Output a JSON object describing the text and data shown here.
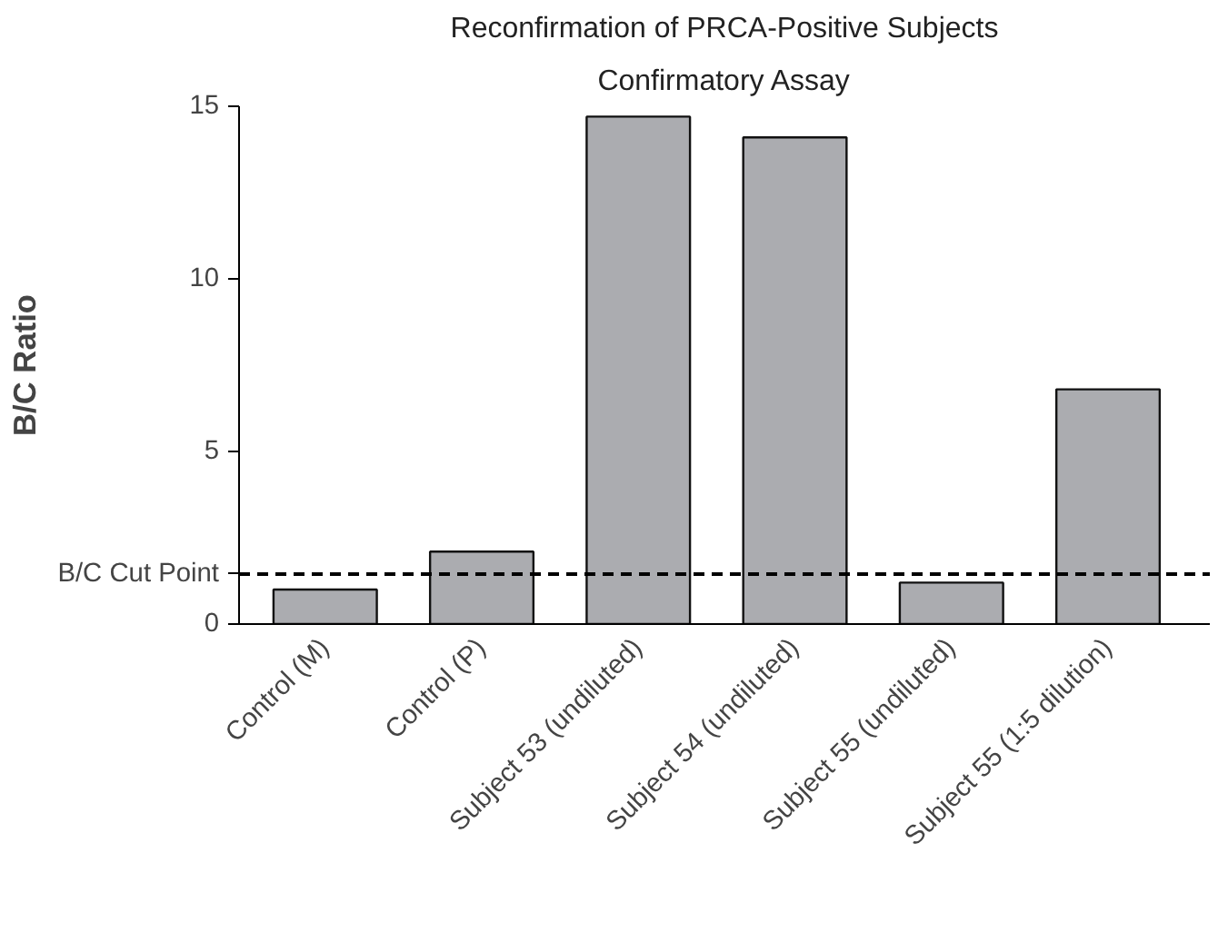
{
  "chart_data": {
    "type": "bar",
    "title": "Reconfirmation of PRCA-Positive Subjects",
    "subtitle": "Confirmatory Assay",
    "ylabel": "B/C Ratio",
    "categories": [
      "Control (M)",
      "Control (P)",
      "Subject 53 (undiluted)",
      "Subject 54 (undiluted)",
      "Subject 55 (undiluted)",
      "Subject 55 (1:5 dilution)"
    ],
    "values": [
      1.0,
      2.1,
      14.7,
      14.1,
      1.2,
      6.8
    ],
    "color": "#abacb0",
    "ylim": [
      0,
      15
    ],
    "yticks": [
      0,
      5,
      10,
      15
    ],
    "grid": false,
    "ref_lines": [
      {
        "axis": "y",
        "value": 1.45,
        "label": "B/C Cut Point",
        "line_style": "dashed",
        "color": "#000000"
      }
    ]
  }
}
